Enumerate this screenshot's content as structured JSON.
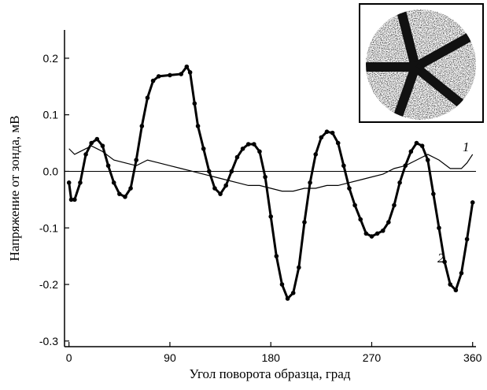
{
  "chart_data": {
    "type": "line",
    "xlabel": "Угол поворота образца, град",
    "ylabel": "Напряжение от зонда, мВ",
    "xlim": [
      -4,
      363
    ],
    "ylim": [
      -0.31,
      0.25
    ],
    "xticks": [
      0,
      90,
      180,
      270,
      360
    ],
    "yticks": [
      -0.3,
      -0.2,
      -0.1,
      {
        "value": 0,
        "label": "0.0"
      },
      0.1,
      0.2
    ],
    "reference_line": 0,
    "series": [
      {
        "name": "1",
        "color": "#000000",
        "x": [
          0,
          5,
          10,
          20,
          30,
          40,
          50,
          60,
          70,
          80,
          90,
          100,
          110,
          120,
          130,
          140,
          150,
          160,
          170,
          180,
          190,
          200,
          210,
          220,
          230,
          240,
          250,
          260,
          270,
          280,
          290,
          300,
          310,
          320,
          330,
          340,
          350,
          355,
          360
        ],
        "values": [
          0.04,
          0.03,
          0.035,
          0.045,
          0.035,
          0.02,
          0.015,
          0.01,
          0.02,
          0.015,
          0.01,
          0.005,
          0.0,
          -0.005,
          -0.01,
          -0.015,
          -0.02,
          -0.025,
          -0.025,
          -0.03,
          -0.035,
          -0.035,
          -0.03,
          -0.03,
          -0.025,
          -0.025,
          -0.02,
          -0.015,
          -0.01,
          -0.005,
          0.005,
          0.01,
          0.02,
          0.03,
          0.02,
          0.005,
          0.005,
          0.015,
          0.03
        ]
      },
      {
        "name": "2",
        "color": "#000000",
        "markers": true,
        "x": [
          0,
          2,
          5,
          10,
          15,
          20,
          25,
          30,
          35,
          40,
          45,
          50,
          55,
          60,
          65,
          70,
          75,
          80,
          90,
          100,
          105,
          108,
          112,
          115,
          120,
          125,
          130,
          135,
          140,
          145,
          150,
          155,
          160,
          165,
          170,
          175,
          180,
          185,
          190,
          195,
          200,
          205,
          210,
          215,
          220,
          225,
          230,
          235,
          240,
          245,
          250,
          255,
          260,
          265,
          270,
          275,
          280,
          285,
          290,
          295,
          300,
          305,
          310,
          315,
          320,
          325,
          330,
          335,
          340,
          345,
          350,
          355,
          360
        ],
        "values": [
          -0.02,
          -0.05,
          -0.05,
          -0.02,
          0.03,
          0.05,
          0.057,
          0.045,
          0.01,
          -0.02,
          -0.04,
          -0.045,
          -0.03,
          0.02,
          0.08,
          0.13,
          0.16,
          0.168,
          0.17,
          0.172,
          0.185,
          0.175,
          0.12,
          0.08,
          0.04,
          0.0,
          -0.03,
          -0.04,
          -0.025,
          0.0,
          0.025,
          0.04,
          0.048,
          0.048,
          0.035,
          -0.01,
          -0.08,
          -0.15,
          -0.2,
          -0.225,
          -0.215,
          -0.17,
          -0.09,
          -0.02,
          0.03,
          0.06,
          0.07,
          0.068,
          0.05,
          0.01,
          -0.03,
          -0.06,
          -0.085,
          -0.11,
          -0.115,
          -0.11,
          -0.105,
          -0.09,
          -0.06,
          -0.02,
          0.01,
          0.035,
          0.05,
          0.045,
          0.02,
          -0.04,
          -0.1,
          -0.16,
          -0.2,
          -0.21,
          -0.18,
          -0.12,
          -0.055
        ]
      }
    ]
  }
}
